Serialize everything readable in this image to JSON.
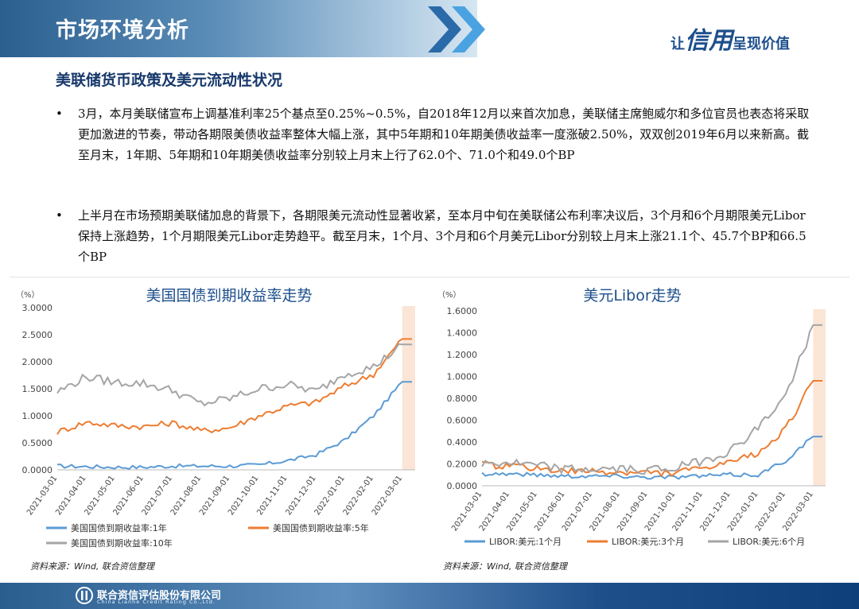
{
  "header": {
    "title": "市场环境分析",
    "slogan_pre": "让",
    "slogan_big": "信用",
    "slogan_post": "呈现价值"
  },
  "subtitle": "美联储货币政策及美元流动性状况",
  "bullets": [
    "3月，本月美联储宣布上调基准利率25个基点至0.25%~0.5%，自2018年12月以来首次加息，美联储主席鲍威尔和多位官员也表态将采取更加激进的节奏，带动各期限美债收益率整体大幅上涨，其中5年期和10年期美债收益率一度涨破2.50%，双双创2019年6月以来新高。截至月末，1年期、5年期和10年期美债收益率分别较上月末上行了62.0个、71.0个和49.0个BP",
    "上半月在市场预期美联储加息的背景下，各期限美元流动性显著收紧，至本月中旬在美联储公布利率决议后，3个月和6个月期限美元Libor保持上涨趋势，1个月期限美元Libor走势趋平。截至月末，1个月、3个月和6个月美元Libor分别较上月末上涨21.1个、45.7个BP和66.5个BP"
  ],
  "bullet_symbol": "•",
  "chart_data": [
    {
      "type": "line",
      "title": "美国国债到期收益率走势",
      "unit_label": "（%）",
      "ylim": [
        0,
        3.0
      ],
      "y_ticks": [
        "3.0000",
        "2.5000",
        "2.0000",
        "1.5000",
        "1.0000",
        "0.5000",
        "0.0000"
      ],
      "x_ticks": [
        "2021-03-01",
        "2021-04-01",
        "2021-05-01",
        "2021-06-01",
        "2021-07-01",
        "2021-08-01",
        "2021-09-01",
        "2021-10-01",
        "2021-11-01",
        "2021-12-01",
        "2022-01-01",
        "2022-02-01",
        "2022-03-01"
      ],
      "highlight_from": "2022-03-01",
      "legend": "bottom",
      "series": [
        {
          "name": "美国国债到期收益率:1年",
          "color": "#5b9bd5",
          "values": [
            0.07,
            0.06,
            0.05,
            0.05,
            0.07,
            0.07,
            0.07,
            0.09,
            0.17,
            0.28,
            0.55,
            1.0,
            1.63
          ]
        },
        {
          "name": "美国国债到期收益率:5年",
          "color": "#ed7d31",
          "values": [
            0.7,
            0.88,
            0.82,
            0.8,
            0.87,
            0.72,
            0.78,
            1.0,
            1.18,
            1.25,
            1.55,
            1.77,
            2.42
          ]
        },
        {
          "name": "美国国债到期收益率:10年",
          "color": "#a5a5a5",
          "values": [
            1.44,
            1.72,
            1.62,
            1.6,
            1.47,
            1.22,
            1.32,
            1.5,
            1.58,
            1.45,
            1.78,
            1.9,
            2.32
          ]
        }
      ]
    },
    {
      "type": "line",
      "title": "美元Libor走势",
      "unit_label": "（%）",
      "ylim": [
        0,
        1.6
      ],
      "y_ticks": [
        "1.6000",
        "1.4000",
        "1.2000",
        "1.0000",
        "0.8000",
        "0.6000",
        "0.4000",
        "0.2000",
        "0.0000"
      ],
      "x_ticks": [
        "2021-03-01",
        "2021-04-01",
        "2021-05-01",
        "2021-06-01",
        "2021-07-01",
        "2021-08-01",
        "2021-09-01",
        "2021-10-01",
        "2021-11-01",
        "2021-12-01",
        "2022-01-01",
        "2022-02-01",
        "2022-03-01"
      ],
      "highlight_from": "2022-03-01",
      "legend": "bottom",
      "series": [
        {
          "name": "LIBOR:美元:1个月",
          "color": "#5b9bd5",
          "values": [
            0.11,
            0.11,
            0.1,
            0.09,
            0.09,
            0.09,
            0.08,
            0.08,
            0.09,
            0.1,
            0.1,
            0.23,
            0.45
          ]
        },
        {
          "name": "LIBOR:美元:3个月",
          "color": "#ed7d31",
          "values": [
            0.19,
            0.18,
            0.16,
            0.13,
            0.13,
            0.12,
            0.12,
            0.12,
            0.16,
            0.21,
            0.3,
            0.52,
            0.96
          ]
        },
        {
          "name": "LIBOR:美元:6个月",
          "color": "#a5a5a5",
          "values": [
            0.2,
            0.21,
            0.18,
            0.15,
            0.15,
            0.15,
            0.15,
            0.16,
            0.23,
            0.32,
            0.53,
            0.82,
            1.47
          ]
        }
      ]
    }
  ],
  "sources": [
    "资料来源：Wind, 联合资信整理",
    "资料来源：Wind, 联合资信整理"
  ],
  "footer": {
    "company": "联合资信评估股份有限公司",
    "company_en": "China Lianhe Credit Rating Co.,Ltd."
  },
  "colors": {
    "brand": "#1d4f8c",
    "accent_highlight": "#fbe5d6"
  },
  "icons": [
    "chevron-right-icon",
    "company-logo-icon"
  ]
}
